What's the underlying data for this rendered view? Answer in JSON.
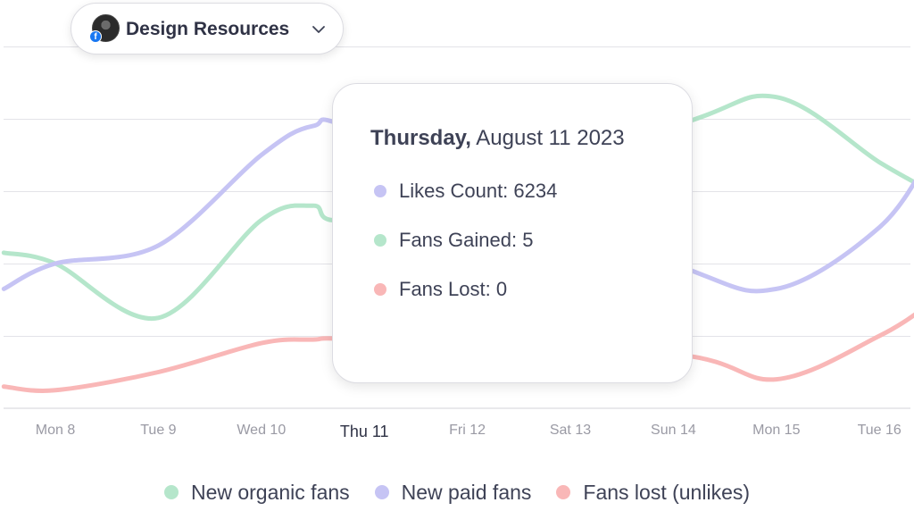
{
  "page_selector": {
    "label": "Design Resources",
    "avatar_icon": "profile-avatar-icon",
    "badge_icon": "facebook-icon",
    "badge_text": "f",
    "chevron_icon": "chevron-down-icon"
  },
  "tooltip": {
    "day": "Thursday,",
    "date": "August 11  2023",
    "rows": [
      {
        "label": "Likes Count: 6234",
        "color": "#c6c4f4"
      },
      {
        "label": "Fans Gained: 5",
        "color": "#b5e6cb"
      },
      {
        "label": "Fans Lost: 0",
        "color": "#f9b7b7"
      }
    ]
  },
  "legend": [
    {
      "label": "New organic fans",
      "color": "#b5e6cb"
    },
    {
      "label": "New paid fans",
      "color": "#c6c4f4"
    },
    {
      "label": "Fans lost (unlikes)",
      "color": "#f9b7b7"
    }
  ],
  "chart_data": {
    "type": "line",
    "categories": [
      "Mon 8",
      "Tue 9",
      "Wed 10",
      "Thu 11",
      "Fri 12",
      "Sat 13",
      "Sun 14",
      "Mon 15",
      "Tue 16"
    ],
    "active_category": "Thu 11",
    "grid": true,
    "smooth": true,
    "ylim": [
      0,
      100
    ],
    "legend_position": "bottom",
    "series": [
      {
        "name": "New organic fans",
        "color": "#b5e6cb",
        "x": [
          -0.5,
          0,
          1,
          2,
          2.5,
          3,
          6,
          7,
          8,
          8.5
        ],
        "values": [
          43,
          40,
          25,
          52,
          56,
          53,
          78,
          86,
          68,
          60
        ]
      },
      {
        "name": "New paid fans",
        "color": "#c6c4f4",
        "x": [
          -0.5,
          0,
          1,
          2,
          2.5,
          3,
          6,
          7,
          8,
          8.5
        ],
        "values": [
          33,
          40,
          45,
          70,
          78,
          76,
          40,
          33,
          50,
          70
        ]
      },
      {
        "name": "Fans lost (unlikes)",
        "color": "#f9b7b7",
        "x": [
          -0.5,
          0,
          1,
          2,
          2.5,
          3,
          6,
          7,
          8,
          8.5
        ],
        "values": [
          6,
          5,
          10,
          18,
          19,
          19,
          15,
          8,
          20,
          29
        ]
      }
    ]
  }
}
